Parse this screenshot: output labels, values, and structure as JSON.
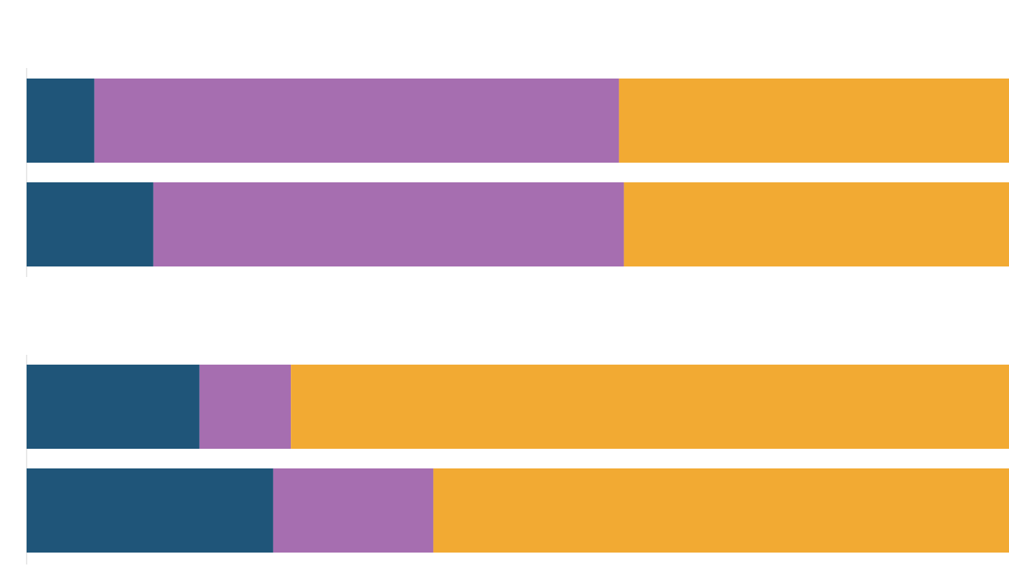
{
  "chart_data": [
    {
      "type": "bar",
      "orientation": "horizontal",
      "stacked": true,
      "categories": [
        null,
        null
      ],
      "series": [
        {
          "color": "#1f5579",
          "values": [
            6.9,
            12.9
          ]
        },
        {
          "color": "#a66eb0",
          "values": [
            53.4,
            47.9
          ]
        },
        {
          "color": "#f2aa33",
          "values": [
            39.7,
            39.2
          ]
        }
      ],
      "xlim": [
        0,
        100
      ]
    },
    {
      "type": "bar",
      "orientation": "horizontal",
      "stacked": true,
      "categories": [
        null,
        null
      ],
      "series": [
        {
          "color": "#1f5579",
          "values": [
            17.6,
            25.1
          ]
        },
        {
          "color": "#a66eb0",
          "values": [
            9.3,
            16.3
          ]
        },
        {
          "color": "#f2aa33",
          "values": [
            73.1,
            58.6
          ]
        }
      ],
      "xlim": [
        0,
        100
      ]
    }
  ]
}
